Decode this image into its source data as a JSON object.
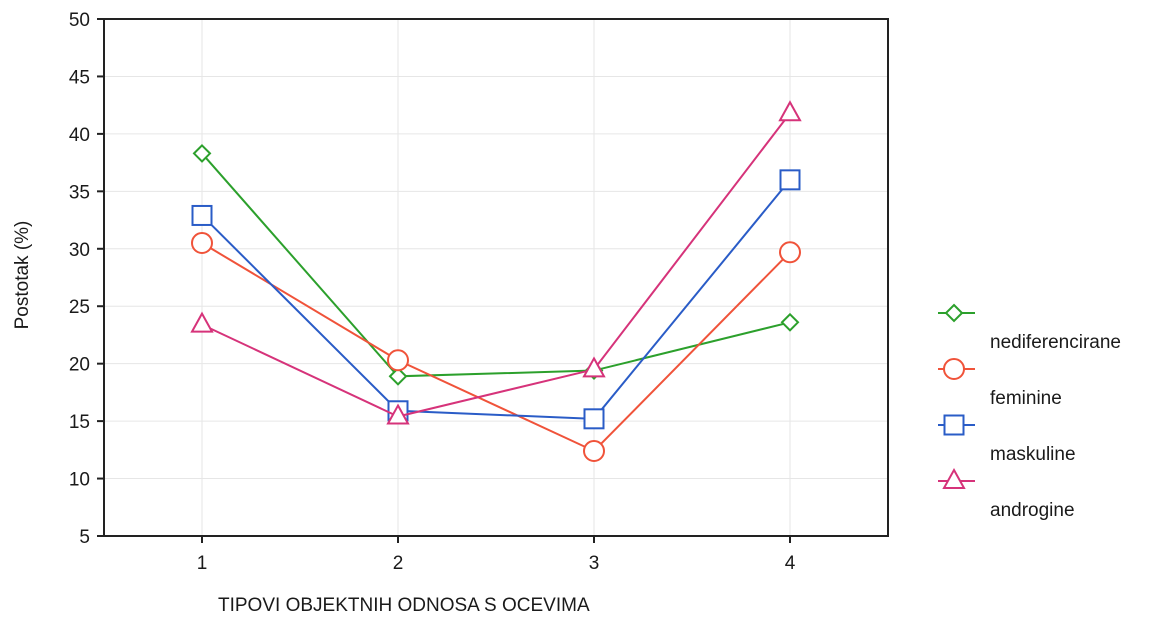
{
  "chart_data": {
    "type": "line",
    "xlabel": "TIPOVI OBJEKTNIH ODNOSA S OCEVIMA",
    "ylabel": "Postotak (%)",
    "x": [
      1,
      2,
      3,
      4
    ],
    "x_tick_labels": [
      "1",
      "2",
      "3",
      "4"
    ],
    "xlim": [
      0.5,
      4.5
    ],
    "ylim": [
      5,
      50
    ],
    "y_ticks": [
      5,
      10,
      15,
      20,
      25,
      30,
      35,
      40,
      45,
      50
    ],
    "grid": true,
    "legend_position": "right",
    "series": [
      {
        "name": "nediferencirane",
        "values": [
          38.3,
          18.9,
          19.4,
          23.6
        ],
        "color": "#2ca02c",
        "marker": "diamond"
      },
      {
        "name": "feminine",
        "values": [
          30.5,
          20.3,
          12.4,
          29.7
        ],
        "color": "#f0533a",
        "marker": "circle"
      },
      {
        "name": "maskuline",
        "values": [
          32.9,
          15.9,
          15.2,
          36.0
        ],
        "color": "#2a5cc7",
        "marker": "square"
      },
      {
        "name": "androgine",
        "values": [
          23.4,
          15.4,
          19.5,
          41.8
        ],
        "color": "#d6337a",
        "marker": "triangle"
      }
    ]
  }
}
